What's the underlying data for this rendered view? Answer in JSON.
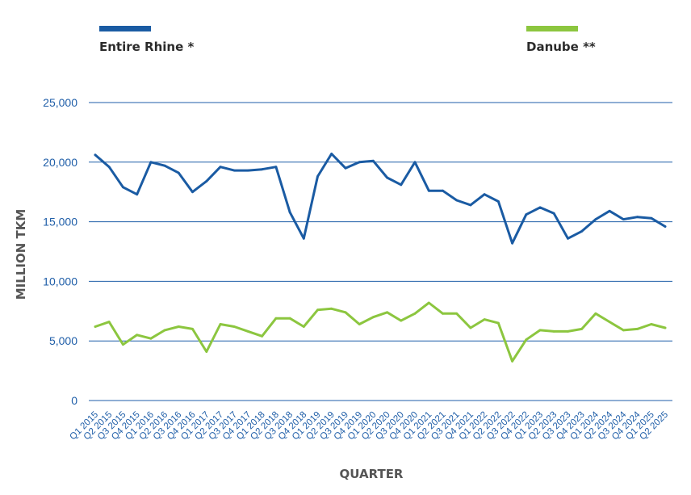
{
  "chart_data": {
    "type": "line",
    "title": "",
    "xlabel": "QUARTER",
    "ylabel": "MILLION TKM",
    "ylim": [
      0,
      25000
    ],
    "yticks": [
      0,
      5000,
      10000,
      15000,
      20000,
      25000
    ],
    "ytick_labels": [
      "0",
      "5,000",
      "10,000",
      "15,000",
      "20,000",
      "25,000"
    ],
    "grid": true,
    "legend_position": "top",
    "categories": [
      "Q1 2015",
      "Q2 2015",
      "Q3 2015",
      "Q4 2015",
      "Q1 2016",
      "Q2 2016",
      "Q3 2016",
      "Q4 2016",
      "Q1 2017",
      "Q2 2017",
      "Q3 2017",
      "Q4 2017",
      "Q1 2018",
      "Q2 2018",
      "Q3 2018",
      "Q4 2018",
      "Q1 2019",
      "Q2 2019",
      "Q3 2019",
      "Q4 2019",
      "Q1 2020",
      "Q2 2020",
      "Q3 2020",
      "Q4 2020",
      "Q1 2021",
      "Q2 2021",
      "Q3 2021",
      "Q4 2021",
      "Q1 2022",
      "Q2 2022",
      "Q3 2022",
      "Q4 2022",
      "Q1 2023",
      "Q2 2023",
      "Q3 2023",
      "Q4 2023",
      "Q1 2024",
      "Q2 2024",
      "Q3 2024",
      "Q4 2024",
      "Q1 2025",
      "Q2 2025"
    ],
    "series": [
      {
        "name": "Entire Rhine *",
        "color": "#1a5ba3",
        "values": [
          20600,
          19600,
          17900,
          17300,
          20000,
          19700,
          19100,
          17500,
          18400,
          19600,
          19300,
          19300,
          19400,
          19600,
          15800,
          13600,
          18800,
          20700,
          19500,
          20000,
          20100,
          18700,
          18100,
          20000,
          17600,
          17600,
          16800,
          16400,
          17300,
          16700,
          13200,
          15600,
          16200,
          15700,
          13600,
          14200,
          15200,
          15900,
          15200,
          15400,
          15300,
          14600
        ]
      },
      {
        "name": "Danube **",
        "color": "#8cc63f",
        "values": [
          6200,
          6600,
          4700,
          5500,
          5200,
          5900,
          6200,
          6000,
          4100,
          6400,
          6200,
          5800,
          5400,
          6900,
          6900,
          6200,
          7600,
          7700,
          7400,
          6400,
          7000,
          7400,
          6700,
          7300,
          8200,
          7300,
          7300,
          6100,
          6800,
          6500,
          3300,
          5100,
          5900,
          5800,
          5800,
          6000,
          7300,
          6600,
          5900,
          6000,
          6400,
          6100
        ]
      }
    ]
  }
}
